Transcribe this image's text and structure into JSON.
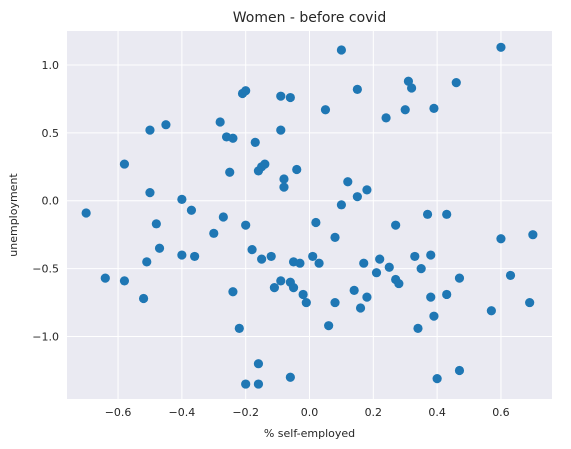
{
  "chart_data": {
    "type": "scatter",
    "title": "Women - before covid",
    "xlabel": "% self-employed",
    "ylabel": "unemployment",
    "xlim": [
      -0.76,
      0.76
    ],
    "ylim": [
      -1.46,
      1.25
    ],
    "xticks": [
      -0.6,
      -0.4,
      -0.2,
      0.0,
      0.2,
      0.4,
      0.6
    ],
    "xtick_labels": [
      "−0.6",
      "−0.4",
      "−0.2",
      "0.0",
      "0.2",
      "0.4",
      "0.6"
    ],
    "yticks": [
      1.0,
      0.5,
      0.0,
      -0.5,
      -1.0
    ],
    "ytick_labels": [
      "1.0",
      "0.5",
      "0.0",
      "−0.5",
      "−1.0"
    ],
    "grid": true,
    "background": "#eaeaf2",
    "grid_color": "#ffffff",
    "marker_color": "#1f77b4",
    "points": [
      [
        -0.7,
        -0.09
      ],
      [
        -0.64,
        -0.57
      ],
      [
        -0.58,
        0.27
      ],
      [
        -0.58,
        -0.59
      ],
      [
        -0.52,
        -0.72
      ],
      [
        -0.51,
        -0.45
      ],
      [
        -0.5,
        0.52
      ],
      [
        -0.5,
        0.06
      ],
      [
        -0.48,
        -0.17
      ],
      [
        -0.47,
        -0.35
      ],
      [
        -0.45,
        0.56
      ],
      [
        -0.4,
        0.01
      ],
      [
        -0.4,
        -0.4
      ],
      [
        -0.37,
        -0.07
      ],
      [
        -0.36,
        -0.41
      ],
      [
        -0.3,
        -0.24
      ],
      [
        -0.28,
        0.58
      ],
      [
        -0.27,
        -0.12
      ],
      [
        -0.26,
        0.47
      ],
      [
        -0.25,
        0.21
      ],
      [
        -0.24,
        0.46
      ],
      [
        -0.24,
        -0.67
      ],
      [
        -0.22,
        -0.94
      ],
      [
        -0.21,
        0.79
      ],
      [
        -0.2,
        0.81
      ],
      [
        -0.2,
        -0.18
      ],
      [
        -0.2,
        -1.35
      ],
      [
        -0.18,
        -0.36
      ],
      [
        -0.17,
        0.43
      ],
      [
        -0.16,
        0.22
      ],
      [
        -0.16,
        -1.2
      ],
      [
        -0.16,
        -1.35
      ],
      [
        -0.15,
        -0.43
      ],
      [
        -0.15,
        0.25
      ],
      [
        -0.14,
        0.27
      ],
      [
        -0.12,
        -0.41
      ],
      [
        -0.11,
        -0.64
      ],
      [
        -0.09,
        0.77
      ],
      [
        -0.09,
        0.52
      ],
      [
        -0.09,
        -0.59
      ],
      [
        -0.08,
        0.16
      ],
      [
        -0.08,
        0.1
      ],
      [
        -0.06,
        0.76
      ],
      [
        -0.06,
        -0.6
      ],
      [
        -0.06,
        -1.3
      ],
      [
        -0.05,
        -0.64
      ],
      [
        -0.05,
        -0.45
      ],
      [
        -0.04,
        0.23
      ],
      [
        -0.03,
        -0.46
      ],
      [
        -0.02,
        -0.69
      ],
      [
        -0.01,
        -0.75
      ],
      [
        0.01,
        -0.41
      ],
      [
        0.02,
        -0.16
      ],
      [
        0.03,
        -0.46
      ],
      [
        0.05,
        0.67
      ],
      [
        0.06,
        -0.92
      ],
      [
        0.08,
        -0.27
      ],
      [
        0.08,
        -0.75
      ],
      [
        0.1,
        1.11
      ],
      [
        0.1,
        -0.03
      ],
      [
        0.12,
        0.14
      ],
      [
        0.14,
        -0.66
      ],
      [
        0.15,
        0.03
      ],
      [
        0.15,
        0.82
      ],
      [
        0.16,
        -0.79
      ],
      [
        0.17,
        -0.46
      ],
      [
        0.18,
        0.08
      ],
      [
        0.18,
        -0.71
      ],
      [
        0.21,
        -0.53
      ],
      [
        0.22,
        -0.43
      ],
      [
        0.24,
        0.61
      ],
      [
        0.25,
        -0.49
      ],
      [
        0.27,
        -0.18
      ],
      [
        0.27,
        -0.58
      ],
      [
        0.28,
        -0.61
      ],
      [
        0.3,
        0.67
      ],
      [
        0.31,
        0.88
      ],
      [
        0.32,
        0.83
      ],
      [
        0.33,
        -0.41
      ],
      [
        0.34,
        -0.94
      ],
      [
        0.35,
        -0.5
      ],
      [
        0.37,
        -0.1
      ],
      [
        0.38,
        -0.4
      ],
      [
        0.38,
        -0.71
      ],
      [
        0.39,
        0.68
      ],
      [
        0.39,
        -0.85
      ],
      [
        0.4,
        -1.31
      ],
      [
        0.43,
        -0.69
      ],
      [
        0.43,
        -0.1
      ],
      [
        0.46,
        0.87
      ],
      [
        0.47,
        -0.57
      ],
      [
        0.47,
        -1.25
      ],
      [
        0.57,
        -0.81
      ],
      [
        0.6,
        1.13
      ],
      [
        0.6,
        -0.28
      ],
      [
        0.63,
        -0.55
      ],
      [
        0.69,
        -0.75
      ],
      [
        0.7,
        -0.25
      ]
    ]
  }
}
